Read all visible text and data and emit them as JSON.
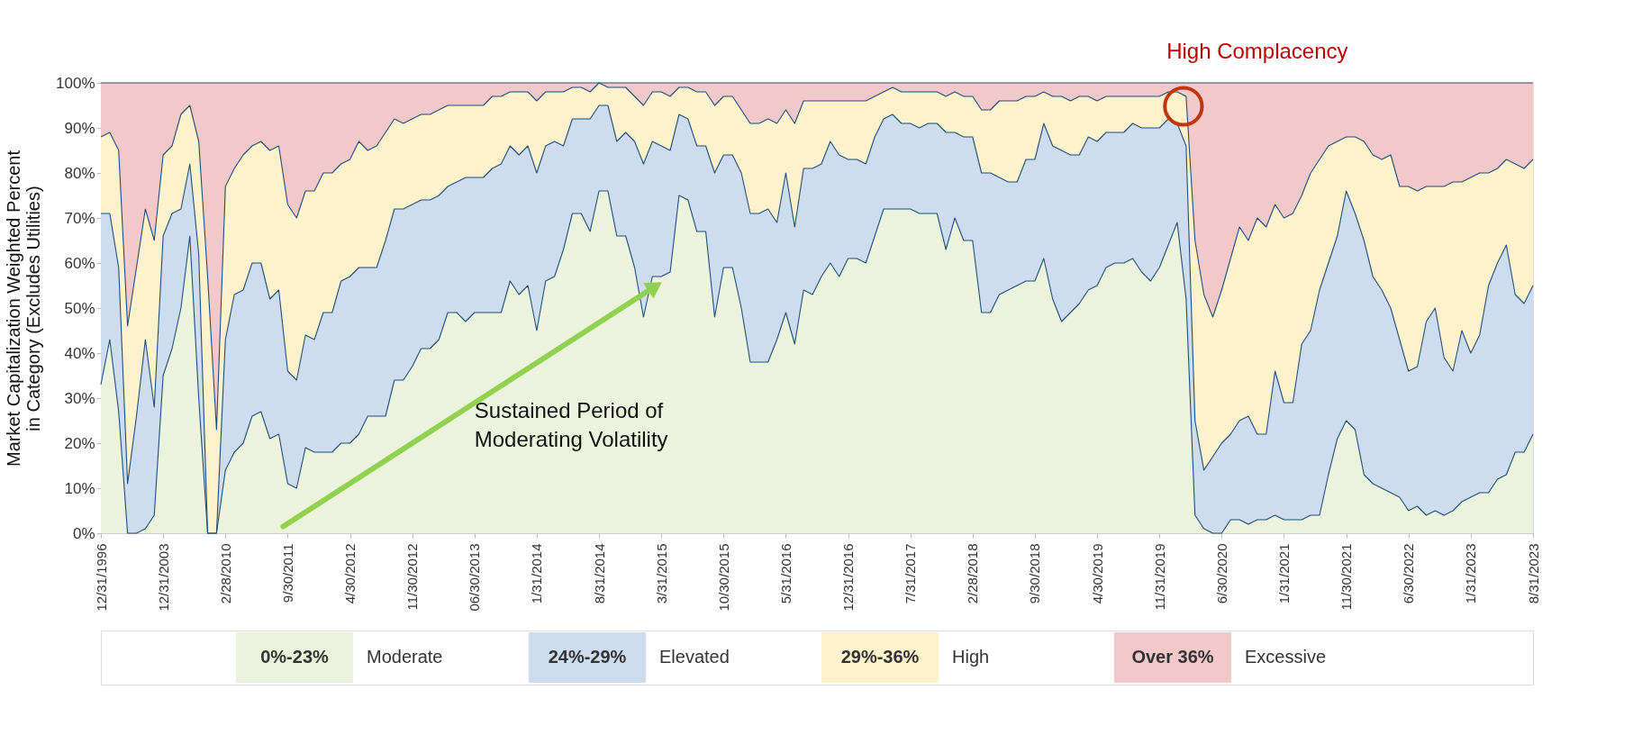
{
  "chart_data": {
    "type": "area",
    "stacked": true,
    "ylabel": "Market Capitalization Weighted Percent\nin Category (Excludes Utilities)",
    "categories": [
      "12/31/1996",
      null,
      null,
      null,
      null,
      null,
      null,
      "12/31/2003",
      null,
      null,
      null,
      null,
      null,
      null,
      "2/28/2010",
      null,
      null,
      null,
      null,
      null,
      null,
      "9/30/2011",
      null,
      null,
      null,
      null,
      null,
      null,
      "4/30/2012",
      null,
      null,
      null,
      null,
      null,
      null,
      "11/30/2012",
      null,
      null,
      null,
      null,
      null,
      null,
      "06/30/2013",
      null,
      null,
      null,
      null,
      null,
      null,
      "1/31/2014",
      null,
      null,
      null,
      null,
      null,
      null,
      "8/31/2014",
      null,
      null,
      null,
      null,
      null,
      null,
      "3/31/2015",
      null,
      null,
      null,
      null,
      null,
      null,
      "10/30/2015",
      null,
      null,
      null,
      null,
      null,
      null,
      "5/31/2016",
      null,
      null,
      null,
      null,
      null,
      null,
      "12/31/2016",
      null,
      null,
      null,
      null,
      null,
      null,
      "7/31/2017",
      null,
      null,
      null,
      null,
      null,
      null,
      "2/28/2018",
      null,
      null,
      null,
      null,
      null,
      null,
      "9/30/2018",
      null,
      null,
      null,
      null,
      null,
      null,
      "4/30/2019",
      null,
      null,
      null,
      null,
      null,
      null,
      "11/31/2019",
      null,
      null,
      null,
      null,
      null,
      null,
      "6/30/2020",
      null,
      null,
      null,
      null,
      null,
      null,
      "1/31/2021",
      null,
      null,
      null,
      null,
      null,
      null,
      "11/30/2021",
      null,
      null,
      null,
      null,
      null,
      null,
      "6/30/2022",
      null,
      null,
      null,
      null,
      null,
      null,
      "1/31/2023",
      null,
      null,
      null,
      null,
      null,
      null,
      "8/31/2023"
    ],
    "series": [
      {
        "name": "0%-23% Moderate",
        "color": "#ebf3dc",
        "values": [
          33,
          43,
          27,
          0,
          0,
          1,
          4,
          35,
          41,
          50,
          66,
          30,
          0,
          0,
          14,
          18,
          20,
          26,
          27,
          21,
          22,
          11,
          10,
          19,
          18,
          18,
          18,
          20,
          20,
          22,
          26,
          26,
          26,
          34,
          34,
          37,
          41,
          41,
          43,
          49,
          49,
          47,
          49,
          49,
          49,
          49,
          56,
          53,
          55,
          45,
          56,
          57,
          63,
          71,
          71,
          67,
          76,
          76,
          66,
          66,
          59,
          48,
          57,
          57,
          58,
          75,
          74,
          67,
          67,
          48,
          59,
          59,
          50,
          38,
          38,
          38,
          43,
          49,
          42,
          54,
          53,
          57,
          60,
          57,
          61,
          61,
          60,
          66,
          72,
          72,
          72,
          72,
          71,
          71,
          71,
          63,
          70,
          65,
          65,
          49,
          49,
          53,
          54,
          55,
          56,
          56,
          61,
          52,
          47,
          49,
          51,
          54,
          55,
          59,
          60,
          60,
          61,
          58,
          56,
          59,
          64,
          69,
          52,
          4,
          1,
          0,
          0,
          3,
          3,
          2,
          3,
          3,
          4,
          3,
          3,
          3,
          4,
          4,
          13,
          21,
          25,
          23,
          13,
          11,
          10,
          9,
          8,
          5,
          6,
          4,
          5,
          4,
          5,
          7,
          8,
          9,
          9,
          12,
          13,
          18,
          18,
          22
        ]
      },
      {
        "name": "24%-29% Elevated",
        "color": "#cddcee",
        "values": [
          38,
          28,
          32,
          11,
          26,
          42,
          24,
          31,
          30,
          22,
          16,
          32,
          0,
          0,
          29,
          35,
          34,
          34,
          33,
          31,
          32,
          25,
          24,
          25,
          25,
          31,
          31,
          36,
          37,
          37,
          33,
          33,
          39,
          38,
          38,
          36,
          33,
          33,
          32,
          28,
          29,
          32,
          30,
          30,
          32,
          33,
          30,
          31,
          31,
          35,
          30,
          30,
          23,
          21,
          21,
          25,
          19,
          19,
          21,
          23,
          28,
          34,
          30,
          29,
          27,
          18,
          18,
          19,
          19,
          32,
          25,
          25,
          30,
          33,
          33,
          34,
          26,
          31,
          26,
          27,
          28,
          25,
          27,
          27,
          22,
          22,
          22,
          22,
          20,
          21,
          19,
          19,
          19,
          20,
          20,
          26,
          19,
          23,
          23,
          31,
          31,
          26,
          24,
          23,
          27,
          27,
          30,
          34,
          38,
          35,
          33,
          34,
          32,
          30,
          29,
          29,
          30,
          32,
          34,
          31,
          28,
          22,
          34,
          21,
          13,
          17,
          20,
          19,
          22,
          24,
          19,
          19,
          32,
          26,
          26,
          39,
          41,
          50,
          47,
          45,
          51,
          48,
          52,
          46,
          44,
          41,
          35,
          31,
          31,
          43,
          45,
          35,
          31,
          38,
          32,
          35,
          46,
          48,
          51,
          35,
          33,
          33
        ]
      },
      {
        "name": "29%-36% High",
        "color": "#fdf2cb",
        "values": [
          17,
          18,
          26,
          35,
          33,
          29,
          37,
          18,
          15,
          21,
          13,
          25,
          57,
          23,
          34,
          28,
          30,
          26,
          27,
          33,
          32,
          37,
          36,
          32,
          33,
          31,
          31,
          26,
          26,
          28,
          26,
          27,
          24,
          20,
          19,
          19,
          19,
          19,
          19,
          18,
          17,
          16,
          16,
          16,
          16,
          15,
          12,
          14,
          12,
          16,
          12,
          11,
          12,
          7,
          7,
          6,
          5,
          4,
          12,
          10,
          10,
          13,
          11,
          12,
          12,
          6,
          7,
          12,
          12,
          15,
          13,
          13,
          14,
          20,
          20,
          20,
          22,
          14,
          23,
          15,
          15,
          14,
          9,
          12,
          13,
          13,
          14,
          9,
          6,
          6,
          7,
          7,
          8,
          7,
          7,
          8,
          9,
          9,
          9,
          14,
          14,
          17,
          18,
          18,
          14,
          14,
          7,
          11,
          12,
          12,
          13,
          9,
          9,
          8,
          8,
          8,
          6,
          7,
          7,
          7,
          6,
          7,
          11,
          40,
          39,
          31,
          34,
          39,
          43,
          39,
          48,
          46,
          37,
          41,
          42,
          33,
          35,
          29,
          26,
          21,
          12,
          17,
          22,
          27,
          29,
          34,
          34,
          41,
          39,
          30,
          27,
          38,
          42,
          33,
          39,
          36,
          25,
          21,
          19,
          29,
          30,
          28
        ]
      },
      {
        "name": "Over 36% Excessive",
        "color": "#f2c9cb",
        "values": [
          12,
          11,
          15,
          54,
          41,
          28,
          35,
          16,
          14,
          7,
          5,
          13,
          43,
          77,
          23,
          19,
          16,
          14,
          13,
          15,
          14,
          27,
          30,
          24,
          24,
          20,
          20,
          18,
          17,
          13,
          15,
          14,
          11,
          8,
          9,
          8,
          7,
          7,
          6,
          5,
          5,
          5,
          5,
          5,
          3,
          3,
          2,
          2,
          2,
          4,
          2,
          2,
          2,
          1,
          1,
          2,
          0,
          1,
          1,
          1,
          3,
          5,
          2,
          2,
          3,
          1,
          1,
          2,
          2,
          5,
          3,
          3,
          6,
          9,
          9,
          8,
          9,
          6,
          9,
          4,
          4,
          4,
          4,
          4,
          4,
          4,
          4,
          3,
          2,
          1,
          2,
          2,
          2,
          2,
          2,
          3,
          2,
          3,
          3,
          6,
          6,
          4,
          4,
          4,
          3,
          3,
          2,
          3,
          3,
          4,
          3,
          3,
          4,
          3,
          3,
          3,
          3,
          3,
          3,
          3,
          2,
          2,
          3,
          35,
          47,
          52,
          46,
          39,
          32,
          35,
          30,
          32,
          27,
          30,
          29,
          25,
          20,
          17,
          14,
          13,
          12,
          12,
          13,
          16,
          17,
          16,
          23,
          23,
          24,
          23,
          23,
          23,
          22,
          22,
          21,
          20,
          20,
          19,
          17,
          18,
          19,
          17
        ]
      }
    ],
    "ylim": [
      0,
      100
    ],
    "yticks": [
      {
        "value": 0,
        "label": "0%"
      },
      {
        "value": 10,
        "label": "10%"
      },
      {
        "value": 20,
        "label": "20%"
      },
      {
        "value": 30,
        "label": "30%"
      },
      {
        "value": 40,
        "label": "40%"
      },
      {
        "value": 50,
        "label": "50%"
      },
      {
        "value": 60,
        "label": "60%"
      },
      {
        "value": 70,
        "label": "70%"
      },
      {
        "value": 80,
        "label": "80%"
      },
      {
        "value": 90,
        "label": "90%"
      },
      {
        "value": 100,
        "label": "100%"
      }
    ],
    "grid": false,
    "annotations": [
      "Sustained Period of\nModerating Volatility",
      "High Complacency"
    ]
  }
}
